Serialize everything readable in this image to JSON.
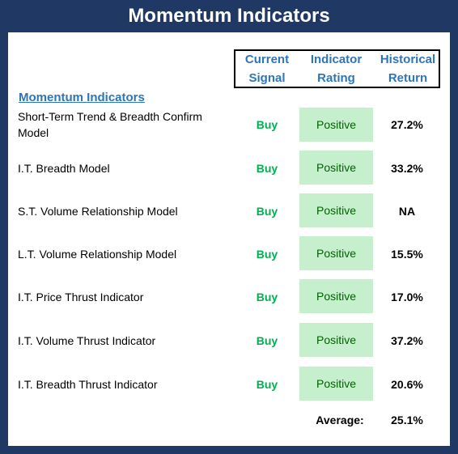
{
  "title": "Momentum Indicators",
  "headers": {
    "signal": [
      "Current",
      "Signal"
    ],
    "rating": [
      "Indicator",
      "Rating"
    ],
    "return": [
      "Historical",
      "Return"
    ]
  },
  "section_title": "Momentum Indicators",
  "rows": [
    {
      "label_lines": [
        "Short-Term Trend & Breadth Confirm",
        "Model"
      ],
      "signal": "Buy",
      "rating": "Positive",
      "return": "27.2%"
    },
    {
      "label_lines": [
        "I.T. Breadth Model"
      ],
      "signal": "Buy",
      "rating": "Positive",
      "return": "33.2%"
    },
    {
      "label_lines": [
        "S.T. Volume Relationship Model"
      ],
      "signal": "Buy",
      "rating": "Positive",
      "return": "NA"
    },
    {
      "label_lines": [
        "L.T. Volume Relationship Model"
      ],
      "signal": "Buy",
      "rating": "Positive",
      "return": "15.5%"
    },
    {
      "label_lines": [
        "I.T. Price Thrust Indicator"
      ],
      "signal": "Buy",
      "rating": "Positive",
      "return": "17.0%"
    },
    {
      "label_lines": [
        "I.T. Volume Thrust Indicator"
      ],
      "signal": "Buy",
      "rating": "Positive",
      "return": "37.2%"
    },
    {
      "label_lines": [
        "I.T. Breadth Thrust Indicator"
      ],
      "signal": "Buy",
      "rating": "Positive",
      "return": "20.6%"
    }
  ],
  "average": {
    "label": "Average:",
    "value": "25.1%"
  },
  "colors": {
    "frame": "#1f3864",
    "header_text": "#2e75b6",
    "buy": "#00b050",
    "positive_bg": "#c6efce",
    "positive_text": "#006100"
  }
}
